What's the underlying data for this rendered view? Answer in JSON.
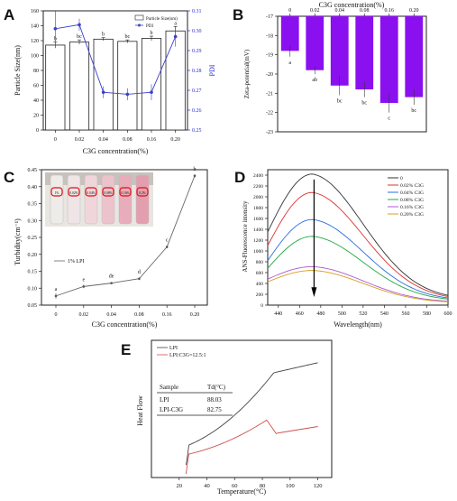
{
  "panels": {
    "A": {
      "letter": "A",
      "chart_data": {
        "type": "bar",
        "categories": [
          "0",
          "0.02",
          "0.04",
          "0.08",
          "0.16",
          "0.20"
        ],
        "xlabel": "C3G concentration(%)",
        "ylabel": "Particle Size(nm)",
        "y2label": "PDI",
        "ylim": [
          0,
          160
        ],
        "yticks": [
          0,
          20,
          40,
          60,
          80,
          100,
          120,
          140,
          160
        ],
        "y2lim": [
          0.25,
          0.31
        ],
        "y2ticks": [
          0.25,
          0.26,
          0.27,
          0.28,
          0.29,
          0.3,
          0.31
        ],
        "series": [
          {
            "name": "Particle Size(nm)",
            "values": [
              114,
              118,
              122,
              119,
              123,
              133
            ],
            "errors": [
              4,
              3,
              2,
              2,
              3,
              6
            ],
            "color": "#ffffff",
            "letters": [
              "b",
              "bc",
              "b",
              "bc",
              "b",
              "a"
            ]
          },
          {
            "name": "PDI",
            "values": [
              0.301,
              0.303,
              0.269,
              0.268,
              0.269,
              0.297
            ],
            "errors": [
              0.009,
              0.003,
              0.003,
              0.003,
              0.004,
              0.005
            ],
            "color": "#3b3fcf"
          }
        ],
        "legend_position": "top-right"
      }
    },
    "B": {
      "letter": "B",
      "chart_data": {
        "type": "bar",
        "categories": [
          "0",
          "0.02",
          "0.04",
          "0.08",
          "0.16",
          "0.20"
        ],
        "xlabel": "C3G concentration(%)",
        "xaxis_position": "top",
        "ylabel": "Zeta-potential(mV)",
        "ylim": [
          -23,
          -17
        ],
        "yticks": [
          -23,
          -22,
          -21,
          -20,
          -19,
          -18,
          -17
        ],
        "bar_color": "#8b10f0",
        "values": [
          -18.8,
          -19.8,
          -20.6,
          -20.8,
          -21.5,
          -21.2
        ],
        "errors": [
          0.3,
          0.2,
          0.5,
          0.4,
          0.5,
          0.4
        ],
        "letters": [
          "a",
          "ab",
          "bc",
          "bc",
          "c",
          "bc"
        ]
      }
    },
    "C": {
      "letter": "C",
      "chart_data": {
        "type": "line",
        "categories": [
          "0",
          "0.02",
          "0.04",
          "0.08",
          "0.16",
          "0.20"
        ],
        "xlabel": "C3G concentration(%)",
        "ylabel": "Turbidity(cm⁻¹)",
        "ylim": [
          0.05,
          0.45
        ],
        "yticks": [
          0.05,
          0.1,
          0.15,
          0.2,
          0.25,
          0.3,
          0.35,
          0.4,
          0.45
        ],
        "series": [
          {
            "name": "1% LPI",
            "values": [
              0.077,
              0.105,
              0.115,
              0.128,
              0.222,
              0.432
            ],
            "errors": [
              0.008,
              0.005,
              0.003,
              0.004,
              0.004,
              0.005
            ],
            "letters": [
              "a",
              "e",
              "de",
              "d",
              "c",
              "b"
            ]
          }
        ],
        "legend_position": "middle-left",
        "inset": "vial photograph"
      },
      "vial_labels": [
        "1%",
        "0.02%",
        "0.04%",
        "0.08%",
        "0.16%",
        "0.2%"
      ]
    },
    "D": {
      "letter": "D",
      "chart_data": {
        "type": "line",
        "xlabel": "Wavelength(nm)",
        "ylabel": "ANS-Fluorescence intensity",
        "xlim": [
          430,
          600
        ],
        "xticks": [
          440,
          460,
          480,
          500,
          520,
          540,
          560,
          580,
          600
        ],
        "ylim": [
          0,
          2500
        ],
        "yticks": [
          0,
          200,
          400,
          600,
          800,
          1000,
          1200,
          1400,
          1600,
          1800,
          2000,
          2200,
          2400
        ],
        "peak_x": 472,
        "series": [
          {
            "name": "0",
            "color": "#333333",
            "peak": 2420,
            "start": 1350,
            "end": 100
          },
          {
            "name": "0.02% C3G",
            "color": "#e03030",
            "peak": 2080,
            "start": 1100,
            "end": 90
          },
          {
            "name": "0.04% C3G",
            "color": "#2a6fd6",
            "peak": 1580,
            "start": 820,
            "end": 80
          },
          {
            "name": "0.08% C3G",
            "color": "#22a844",
            "peak": 1270,
            "start": 680,
            "end": 70
          },
          {
            "name": "0.16% C3G",
            "color": "#b05ad0",
            "peak": 710,
            "start": 480,
            "end": 50
          },
          {
            "name": "0.20% C3G",
            "color": "#d4a020",
            "peak": 640,
            "start": 430,
            "end": 40
          }
        ],
        "annotation": "arrow (decreasing intensity)",
        "legend_position": "top-right"
      }
    },
    "E": {
      "letter": "E",
      "chart_data": {
        "type": "line",
        "xlabel": "Temperature(°C)",
        "ylabel": "Heat Flow",
        "xlim": [
          0,
          130
        ],
        "xticks": [
          20,
          40,
          60,
          80,
          100,
          120
        ],
        "series": [
          {
            "name": "LPI",
            "color": "#444444",
            "Td": 88.03
          },
          {
            "name": "LPI:C3G=12.5:1",
            "color": "#d05050",
            "Td": 82.75
          }
        ],
        "legend_position": "top-left"
      },
      "table": {
        "headers": [
          "Sample",
          "Td(°C)"
        ],
        "rows": [
          [
            "LPI",
            "88.03"
          ],
          [
            "LPI-C3G",
            "82.75"
          ]
        ]
      }
    }
  }
}
